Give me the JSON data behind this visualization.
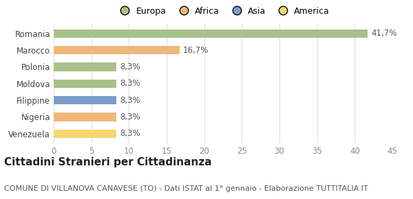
{
  "categories": [
    "Romania",
    "Marocco",
    "Polonia",
    "Moldova",
    "Filippine",
    "Nigeria",
    "Venezuela"
  ],
  "values": [
    41.7,
    16.7,
    8.3,
    8.3,
    8.3,
    8.3,
    8.3
  ],
  "bar_colors": [
    "#a8c08a",
    "#f0b87a",
    "#a8c08a",
    "#a8c08a",
    "#7b9ec9",
    "#f0b87a",
    "#f5d76e"
  ],
  "bar_colors_legend": {
    "Europa": "#a8c08a",
    "Africa": "#f0b87a",
    "Asia": "#7b9ec9",
    "America": "#f5d76e"
  },
  "labels": [
    "41,7%",
    "16,7%",
    "8,3%",
    "8,3%",
    "8,3%",
    "8,3%",
    "8,3%"
  ],
  "xlim": [
    0,
    45
  ],
  "xticks": [
    0,
    5,
    10,
    15,
    20,
    25,
    30,
    35,
    40,
    45
  ],
  "title": "Cittadini Stranieri per Cittadinanza",
  "subtitle": "COMUNE DI VILLANOVA CANAVESE (TO) - Dati ISTAT al 1° gennaio - Elaborazione TUTTITALIA.IT",
  "background_color": "#ffffff",
  "grid_color": "#e0e0e0",
  "bar_height": 0.5,
  "label_fontsize": 8.5,
  "tick_fontsize": 8.5,
  "ytick_fontsize": 8.5,
  "title_fontsize": 11,
  "subtitle_fontsize": 8
}
